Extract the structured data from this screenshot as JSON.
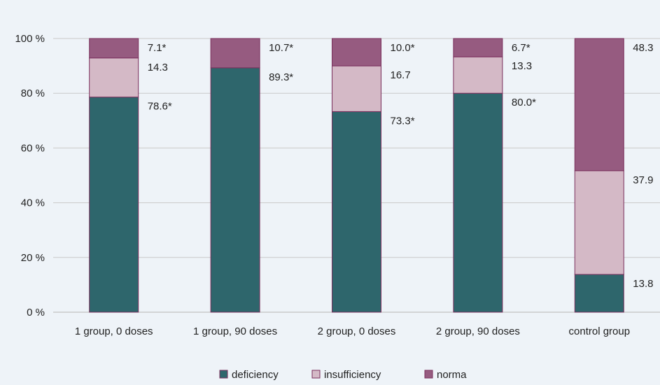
{
  "chart_data": {
    "type": "bar",
    "stacked": true,
    "categories": [
      "1 group, 0 doses",
      "1 group, 90 doses",
      "2 group, 0 doses",
      "2 group, 90 doses",
      "control group"
    ],
    "series": [
      {
        "name": "deficiency",
        "color": "#2e666c",
        "values": [
          78.6,
          89.3,
          73.3,
          80.0,
          13.8
        ],
        "labels": [
          "78.6*",
          "89.3*",
          "73.3*",
          "80.0*",
          "13.8"
        ]
      },
      {
        "name": "insufficiency",
        "color": "#d4b9c6",
        "values": [
          14.3,
          0,
          16.7,
          13.3,
          37.9
        ],
        "labels": [
          "14.3",
          "",
          "16.7",
          "13.3",
          "37.9"
        ]
      },
      {
        "name": "norma",
        "color": "#965b80",
        "values": [
          7.1,
          10.7,
          10.0,
          6.7,
          48.3
        ],
        "labels": [
          "7.1*",
          "10.7*",
          "10.0*",
          "6.7*",
          "48.3"
        ]
      }
    ],
    "y_ticks": [
      "0 %",
      "20 %",
      "40 %",
      "60 %",
      "80 %",
      "100 %"
    ],
    "ylim": [
      0,
      100
    ],
    "grid": true,
    "legend_position": "bottom-center"
  }
}
